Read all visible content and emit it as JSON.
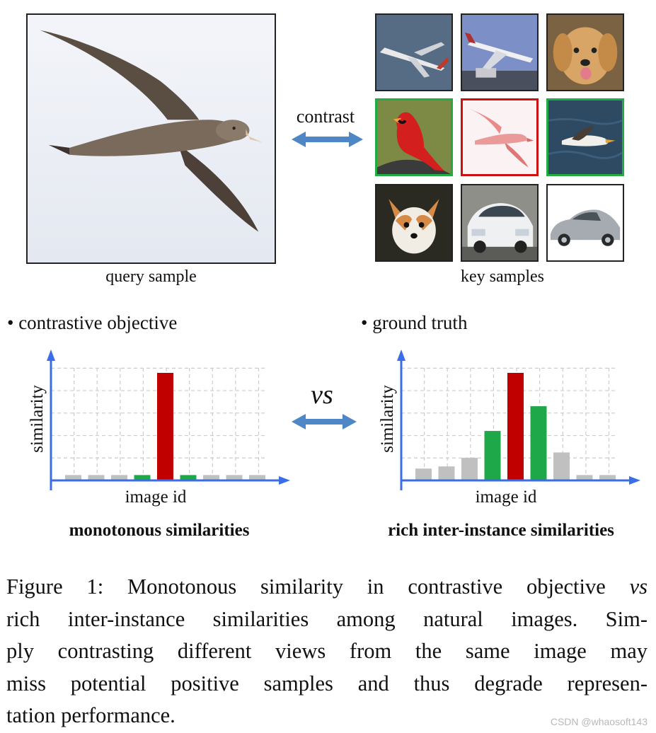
{
  "query": {
    "label": "query sample"
  },
  "keys": {
    "label": "key samples",
    "tiles": [
      {
        "subject": "airplane",
        "border": "#222222"
      },
      {
        "subject": "airplane",
        "border": "#222222"
      },
      {
        "subject": "dog",
        "border": "#222222"
      },
      {
        "subject": "bird",
        "border": "#22aa44"
      },
      {
        "subject": "bird",
        "border": "#cc1111"
      },
      {
        "subject": "bird",
        "border": "#22aa44"
      },
      {
        "subject": "dog",
        "border": "#222222"
      },
      {
        "subject": "car",
        "border": "#222222"
      },
      {
        "subject": "car",
        "border": "#222222"
      }
    ]
  },
  "contrast_label": "contrast",
  "vs_label": "vs",
  "left_panel": {
    "bullet": "• contrastive objective",
    "title": "monotonous similarities"
  },
  "right_panel": {
    "bullet": "• ground truth",
    "title": "rich inter-instance similarities"
  },
  "chart_data": [
    {
      "type": "bar",
      "title": "",
      "xlabel": "image id",
      "ylabel": "similarity",
      "ylim": [
        0,
        1
      ],
      "grid": true,
      "values": [
        0.05,
        0.05,
        0.05,
        0.05,
        1.0,
        0.05,
        0.05,
        0.05,
        0.05
      ],
      "colors": [
        "#c0c0c0",
        "#c0c0c0",
        "#c0c0c0",
        "#1fa84a",
        "#c00000",
        "#1fa84a",
        "#c0c0c0",
        "#c0c0c0",
        "#c0c0c0"
      ]
    },
    {
      "type": "bar",
      "title": "",
      "xlabel": "image id",
      "ylabel": "similarity",
      "ylim": [
        0,
        1
      ],
      "grid": true,
      "values": [
        0.11,
        0.13,
        0.21,
        0.46,
        1.0,
        0.69,
        0.26,
        0.05,
        0.05
      ],
      "colors": [
        "#c0c0c0",
        "#c0c0c0",
        "#c0c0c0",
        "#1fa84a",
        "#c00000",
        "#1fa84a",
        "#c0c0c0",
        "#c0c0c0",
        "#c0c0c0"
      ]
    }
  ],
  "caption": {
    "lines": [
      [
        "Figure 1: Monotonous similarity in contrastive objective ",
        "vs"
      ],
      [
        "rich inter-instance similarities among natural images. Sim-"
      ],
      [
        "ply contrasting different views from the same image may"
      ],
      [
        "miss potential positive samples and thus degrade represen-"
      ],
      [
        "tation performance."
      ]
    ]
  },
  "watermark": "CSDN @whaosoft143",
  "colors": {
    "arrow": "#4f86c6",
    "axis": "#3b6ee6",
    "grid": "#cccccc"
  }
}
